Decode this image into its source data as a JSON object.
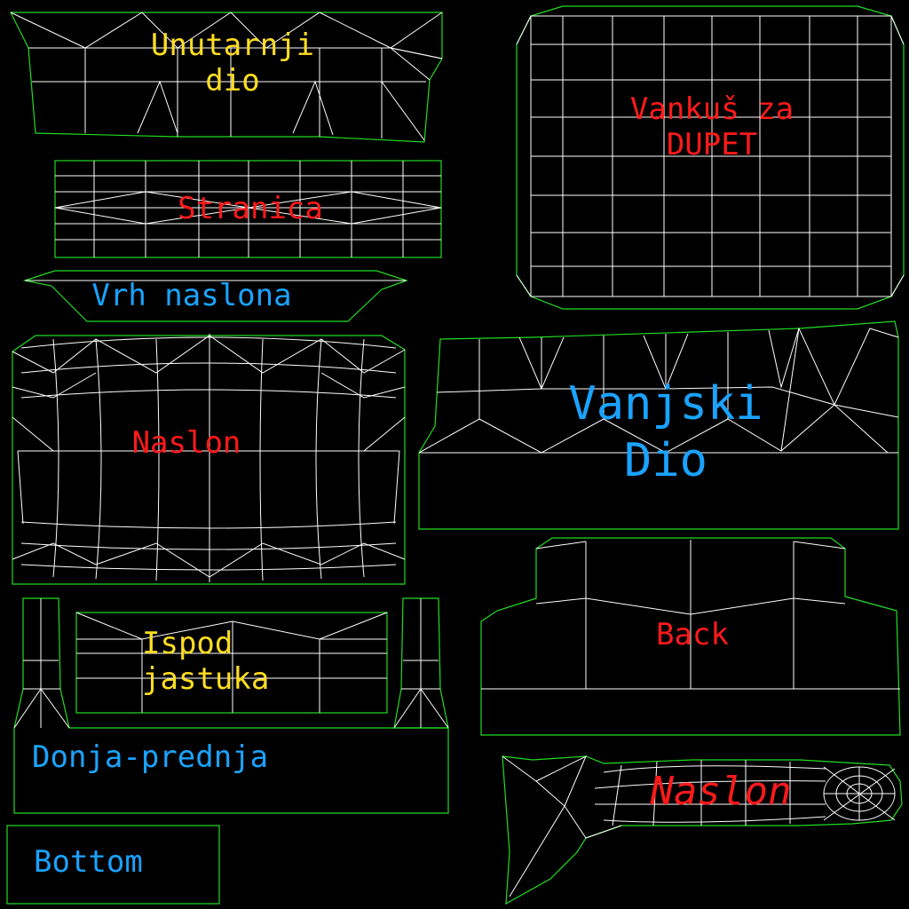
{
  "background": "#000000",
  "colors": {
    "outline": "#22dd22",
    "wire": "#ffffff",
    "yellow": "#ffdd22",
    "red": "#ff1a1a",
    "blue": "#1aa3ff"
  },
  "labels": {
    "unutarnji_1": "Unutarnji",
    "unutarnji_2": "dio",
    "vankus_1": "Vankuš za",
    "vankus_2": "DUPET",
    "stranica": "Stranica",
    "vrh_naslona": "Vrh naslona",
    "naslon": "Naslon",
    "vanjski_1": "Vanjski",
    "vanjski_2": "Dio",
    "ispod_1": "Ispod",
    "ispod_2": "jastuka",
    "back": "Back",
    "donja_prednja": "Donja-prednja",
    "naslon_italic": "Naslon",
    "bottom": "Bottom"
  }
}
